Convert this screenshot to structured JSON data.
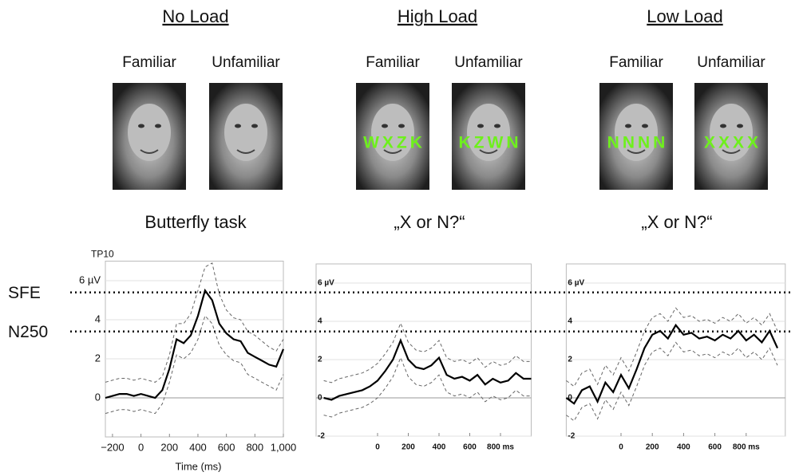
{
  "panels": [
    {
      "title": "No Load",
      "faces": [
        "Familiar",
        "Unfamiliar"
      ],
      "task": "Butterfly task"
    },
    {
      "title": "High Load",
      "faces": [
        "Familiar",
        "Unfamiliar"
      ],
      "overlays": [
        "WXZK",
        "KZWN"
      ],
      "task": "„X or N?“"
    },
    {
      "title": "Low Load",
      "faces": [
        "Familiar",
        "Unfamiliar"
      ],
      "overlays": [
        "NNNN",
        "XXXX"
      ],
      "task": "„X or N?“"
    }
  ],
  "reference_lines": [
    {
      "label": "SFE",
      "value": 5.4
    },
    {
      "label": "N250",
      "value": 3.4
    }
  ],
  "chart_data": [
    {
      "type": "line",
      "channel": "TP10",
      "x_label": "Time (ms)",
      "x": [
        -250,
        -200,
        -150,
        -100,
        -50,
        0,
        50,
        100,
        150,
        200,
        250,
        300,
        350,
        400,
        450,
        500,
        550,
        600,
        650,
        700,
        750,
        800,
        850,
        900,
        950,
        1000
      ],
      "series": [
        {
          "color": "#000000",
          "dashed": false,
          "values": [
            0,
            0.1,
            0.2,
            0.2,
            0.1,
            0.2,
            0.1,
            0,
            0.4,
            1.5,
            3.0,
            2.8,
            3.2,
            4.2,
            5.5,
            5.0,
            3.8,
            3.3,
            3.0,
            2.9,
            2.3,
            2.1,
            1.9,
            1.7,
            1.6,
            2.5
          ]
        },
        {
          "color": "#666666",
          "dashed": true,
          "values": [
            0.8,
            0.9,
            1.0,
            1.0,
            0.9,
            1.0,
            0.9,
            0.8,
            1.1,
            2.2,
            3.8,
            3.8,
            4.3,
            5.5,
            6.7,
            6.9,
            5.3,
            4.5,
            4.1,
            4.0,
            3.4,
            3.2,
            2.9,
            2.6,
            2.4,
            3.0
          ]
        },
        {
          "color": "#666666",
          "dashed": true,
          "values": [
            -0.8,
            -0.7,
            -0.6,
            -0.6,
            -0.7,
            -0.6,
            -0.7,
            -0.8,
            -0.3,
            0.8,
            2.2,
            2.0,
            2.3,
            3.0,
            4.2,
            3.8,
            2.7,
            2.2,
            1.9,
            1.8,
            1.2,
            1.0,
            0.8,
            0.6,
            0.4,
            1.2
          ]
        }
      ],
      "xlim": [
        -250,
        1000
      ],
      "ylim": [
        -2,
        7
      ],
      "xticks": [
        {
          "value": -200,
          "label": "−200"
        },
        0,
        200,
        400,
        600,
        800,
        {
          "value": 1000,
          "label": "1,000"
        }
      ],
      "yticks": [
        0,
        2,
        4,
        {
          "value": 6,
          "label": "6 µV"
        }
      ],
      "grid": true
    },
    {
      "type": "line",
      "x": [
        -350,
        -300,
        -250,
        -200,
        -150,
        -100,
        -50,
        0,
        50,
        100,
        150,
        200,
        250,
        300,
        350,
        400,
        450,
        500,
        550,
        600,
        650,
        700,
        750,
        800,
        850,
        900,
        950,
        1000
      ],
      "series": [
        {
          "color": "#000000",
          "dashed": false,
          "values": [
            0,
            -0.1,
            0.1,
            0.2,
            0.3,
            0.4,
            0.6,
            0.9,
            1.4,
            2.0,
            3.0,
            2.0,
            1.6,
            1.5,
            1.7,
            2.1,
            1.2,
            1.0,
            1.1,
            0.9,
            1.2,
            0.7,
            1.0,
            0.8,
            0.9,
            1.3,
            1.0,
            1.0
          ]
        },
        {
          "color": "#666666",
          "dashed": true,
          "values": [
            0.9,
            0.8,
            1.0,
            1.1,
            1.2,
            1.3,
            1.5,
            1.8,
            2.3,
            2.9,
            3.9,
            2.9,
            2.5,
            2.4,
            2.6,
            3.0,
            2.1,
            1.9,
            2.0,
            1.8,
            2.1,
            1.6,
            1.9,
            1.7,
            1.8,
            2.2,
            1.9,
            1.9
          ]
        },
        {
          "color": "#666666",
          "dashed": true,
          "values": [
            -0.9,
            -1.0,
            -0.8,
            -0.7,
            -0.6,
            -0.5,
            -0.3,
            0,
            0.5,
            1.1,
            2.1,
            1.1,
            0.7,
            0.6,
            0.8,
            1.2,
            0.3,
            0.1,
            0.2,
            0,
            0.3,
            -0.2,
            0.1,
            -0.1,
            0,
            0.4,
            0.1,
            0.1
          ]
        }
      ],
      "xlim": [
        -400,
        1000
      ],
      "ylim": [
        -2,
        7
      ],
      "xticks": [
        0,
        200,
        400,
        600,
        {
          "value": 800,
          "label": "800 ms"
        }
      ],
      "yticks": [
        -2,
        0,
        2,
        4,
        {
          "value": 6,
          "label": "6 µV"
        }
      ],
      "grid": true
    },
    {
      "type": "line",
      "x": [
        -350,
        -300,
        -250,
        -200,
        -150,
        -100,
        -50,
        0,
        50,
        100,
        150,
        200,
        250,
        300,
        350,
        400,
        450,
        500,
        550,
        600,
        650,
        700,
        750,
        800,
        850,
        900,
        950,
        1000
      ],
      "series": [
        {
          "color": "#000000",
          "dashed": false,
          "values": [
            0,
            -0.3,
            0.4,
            0.6,
            -0.2,
            0.8,
            0.3,
            1.2,
            0.5,
            1.5,
            2.6,
            3.3,
            3.5,
            3.1,
            3.8,
            3.3,
            3.4,
            3.1,
            3.2,
            3.0,
            3.3,
            3.1,
            3.5,
            3.0,
            3.3,
            2.9,
            3.5,
            2.6
          ]
        },
        {
          "color": "#666666",
          "dashed": true,
          "values": [
            0.9,
            0.6,
            1.3,
            1.5,
            0.7,
            1.7,
            1.2,
            2.1,
            1.4,
            2.4,
            3.5,
            4.2,
            4.4,
            4.0,
            4.7,
            4.2,
            4.3,
            4.0,
            4.1,
            3.9,
            4.2,
            4.0,
            4.4,
            3.9,
            4.2,
            3.8,
            4.4,
            3.5
          ]
        },
        {
          "color": "#666666",
          "dashed": true,
          "values": [
            -0.9,
            -1.2,
            -0.5,
            -0.3,
            -1.1,
            -0.1,
            -0.6,
            0.3,
            -0.4,
            0.6,
            1.7,
            2.4,
            2.6,
            2.2,
            2.9,
            2.4,
            2.5,
            2.2,
            2.3,
            2.1,
            2.4,
            2.2,
            2.6,
            2.1,
            2.4,
            2.0,
            2.6,
            1.7
          ]
        }
      ],
      "xlim": [
        -350,
        1050
      ],
      "ylim": [
        -2,
        7
      ],
      "xticks": [
        0,
        200,
        400,
        600,
        {
          "value": 800,
          "label": "800 ms"
        }
      ],
      "yticks": [
        -2,
        0,
        2,
        4,
        {
          "value": 6,
          "label": "6 µV"
        }
      ],
      "grid": true
    }
  ]
}
